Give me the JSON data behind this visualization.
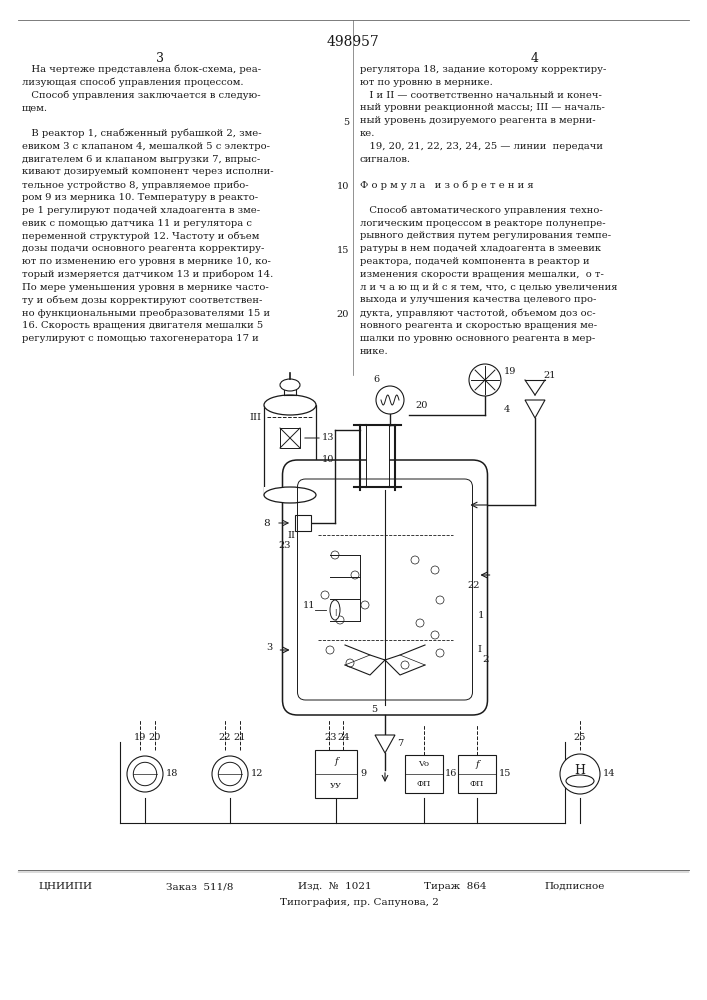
{
  "patent_number": "498957",
  "page_left": "3",
  "page_right": "4",
  "bg_color": "#ffffff",
  "text_color": "#1a1a1a",
  "left_col_text": [
    "   На чертеже представлена блок-схема, реа-",
    "лизующая способ управления процессом.",
    "   Способ управления заключается в следую-",
    "щем.",
    "",
    "   В реактор 1, снабженный рубашкой 2, зме-",
    "евиком 3 с клапаном 4, мешалкой 5 с электро-",
    "двигателем 6 и клапаном выгрузки 7, впрыс-",
    "кивают дозируемый компонент через исполни-",
    "тельное устройство 8, управляемое прибо-",
    "ром 9 из мерника 10. Температуру в реакто-",
    "ре 1 регулируют подачей хладоагента в зме-",
    "евик с помощью датчика 11 и регулятора с",
    "переменной структурой 12. Частоту и объем",
    "дозы подачи основного реагента корректиру-",
    "ют по изменению его уровня в мернике 10, ко-",
    "торый измеряется датчиком 13 и прибором 14.",
    "По мере уменьшения уровня в мернике часто-",
    "ту и объем дозы корректируют соответствен-",
    "но функциональными преобразователями 15 и",
    "16. Скорость вращения двигателя мешалки 5",
    "регулируют с помощью тахогенератора 17 и"
  ],
  "right_col_text": [
    "регулятора 18, задание которому корректиру-",
    "ют по уровню в мернике.",
    "   I и II — соответственно начальный и конеч-",
    "ный уровни реакционной массы; III — началь-",
    "ный уровень дозируемого реагента в мерни-",
    "ке.",
    "   19, 20, 21, 22, 23, 24, 25 — линии  передачи",
    "сигналов.",
    "",
    "Ф о р м у л а   и з о б р е т е н и я",
    "",
    "   Способ автоматического управления техно-",
    "логическим процессом в реакторе полунепре-",
    "рывного действия путем регулирования темпе-",
    "ратуры в нем подачей хладоагента в змеевик",
    "реактора, подачей компонента в реактор и",
    "изменения скорости вращения мешалки,  о т-",
    "л и ч а ю щ и й с я тем, что, с целью увеличения",
    "выхода и улучшения качества целевого про-",
    "дукта, управляют частотой, объемом доз ос-",
    "новного реагента и скоростью вращения ме-",
    "шалки по уровню основного реагента в мер-",
    "нике."
  ],
  "footer_left": "ЦНИИПИ",
  "footer_order": "Заказ  511/8",
  "footer_issue": "Изд.  №  1021",
  "footer_print": "Тираж  864",
  "footer_sign": "Подписное",
  "footer_printer": "Типография, пр. Сапунова, 2"
}
